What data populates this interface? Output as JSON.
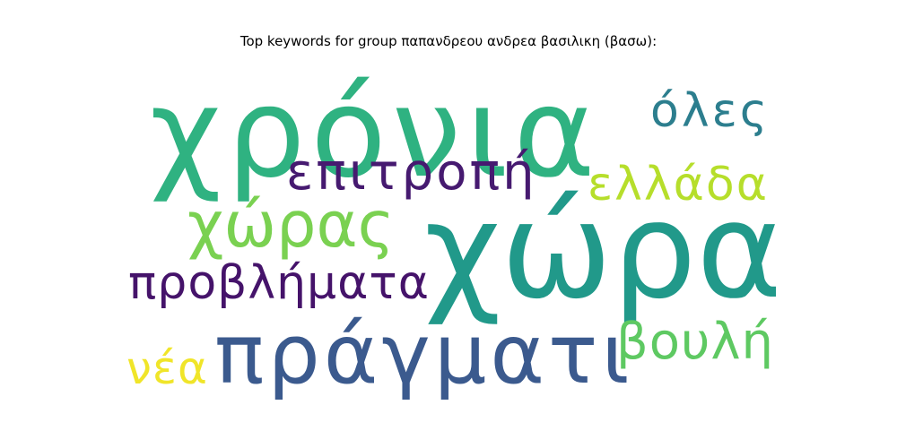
{
  "title": "Top keywords for group παπανδρεου ανδρεα βασιλικη (βασω):",
  "words": {
    "chronia": {
      "text": "χρόνια",
      "color": "#2fb281"
    },
    "chora": {
      "text": "χώρα",
      "color": "#21998a"
    },
    "pragmati": {
      "text": "πράγματι",
      "color": "#3b5a8e"
    },
    "choras": {
      "text": "χώρας",
      "color": "#7ad151"
    },
    "epitropi": {
      "text": "επιτροπή",
      "color": "#461a70"
    },
    "provlimata": {
      "text": "προβλήματα",
      "color": "#45136a"
    },
    "oles": {
      "text": "όλες",
      "color": "#2c7e8e"
    },
    "ellada": {
      "text": "ελλάδα",
      "color": "#b6de2b"
    },
    "vouli": {
      "text": "βουλή",
      "color": "#5ec962"
    },
    "nea": {
      "text": "νέα",
      "color": "#f0e529"
    }
  }
}
